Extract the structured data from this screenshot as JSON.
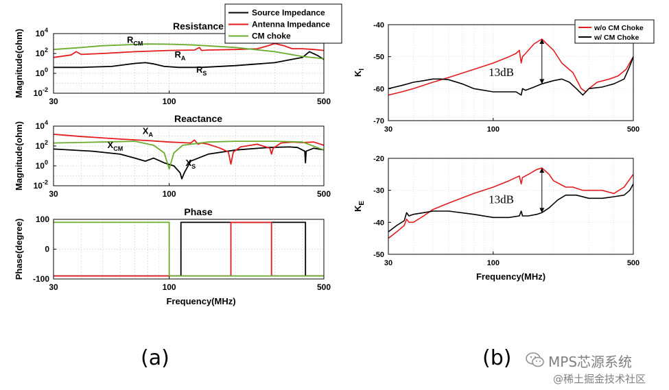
{
  "chart_data": [
    {
      "id": "resistance",
      "type": "line",
      "title": "Resistance",
      "ylabel": "Magnitude(ohm)",
      "xlabel": "",
      "xscale": "log",
      "yscale": "log",
      "xlim": [
        30,
        500
      ],
      "ylim": [
        0.01,
        10000
      ],
      "xticks": [
        30,
        100,
        500
      ],
      "yticks": [
        {
          "v": 0.01,
          "b": "10",
          "e": "-2"
        },
        {
          "v": 1,
          "b": "10",
          "e": "0"
        },
        {
          "v": 100,
          "b": "10",
          "e": "2"
        },
        {
          "v": 10000,
          "b": "10",
          "e": "4"
        }
      ],
      "legend": {
        "placement": "top-right",
        "entries": [
          "Source Impedance",
          "Antenna Impedance",
          "CM choke"
        ]
      },
      "series": [
        {
          "name": "Source Impedance",
          "color": "#000000",
          "x": [
            30,
            40,
            55,
            70,
            78,
            85,
            95,
            110,
            140,
            200,
            300,
            400,
            430,
            470,
            500
          ],
          "y": [
            4,
            4,
            5,
            10,
            12,
            9,
            5,
            4,
            4,
            6,
            12,
            40,
            150,
            60,
            25
          ]
        },
        {
          "name": "Antenna Impedance",
          "color": "#e41a1c",
          "x": [
            30,
            36,
            38,
            40,
            50,
            70,
            100,
            130,
            137,
            140,
            150,
            200,
            250,
            280,
            300,
            330,
            360,
            400,
            450,
            500
          ],
          "y": [
            40,
            70,
            150,
            80,
            100,
            150,
            200,
            220,
            400,
            200,
            220,
            250,
            300,
            600,
            1000,
            600,
            300,
            300,
            250,
            200
          ]
        },
        {
          "name": "CM choke",
          "color": "#6aab2c",
          "x": [
            30,
            40,
            50,
            70,
            80,
            100,
            130,
            200,
            300,
            400,
            500
          ],
          "y": [
            250,
            400,
            600,
            800,
            900,
            850,
            700,
            400,
            150,
            50,
            30
          ]
        }
      ],
      "annotations": [
        {
          "label": "R",
          "sub": "CM",
          "x": 70,
          "y": 1200
        },
        {
          "label": "R",
          "sub": "A",
          "x": 112,
          "y": 40
        },
        {
          "label": "R",
          "sub": "S",
          "x": 140,
          "y": 1.2
        }
      ]
    },
    {
      "id": "reactance",
      "type": "line",
      "title": "Reactance",
      "ylabel": "Magnitude(ohm)",
      "xlabel": "",
      "xscale": "log",
      "yscale": "log",
      "xlim": [
        30,
        500
      ],
      "ylim": [
        0.01,
        10000
      ],
      "xticks": [
        30,
        100,
        500
      ],
      "yticks": [
        {
          "v": 0.01,
          "b": "10",
          "e": "-2"
        },
        {
          "v": 1,
          "b": "10",
          "e": "0"
        },
        {
          "v": 100,
          "b": "10",
          "e": "2"
        },
        {
          "v": 10000,
          "b": "10",
          "e": "4"
        }
      ],
      "series": [
        {
          "name": "Source Impedance",
          "color": "#000000",
          "x": [
            30,
            45,
            60,
            70,
            78,
            85,
            95,
            105,
            112,
            114,
            117,
            125,
            150,
            200,
            280,
            350,
            380,
            410,
            413,
            416,
            450,
            500
          ],
          "y": [
            50,
            30,
            15,
            6,
            3,
            6,
            2,
            1,
            0.2,
            0.05,
            0.2,
            3,
            15,
            40,
            70,
            80,
            70,
            30,
            2,
            30,
            60,
            40
          ]
        },
        {
          "name": "Antenna Impedance",
          "color": "#e41a1c",
          "x": [
            30,
            40,
            60,
            80,
            100,
            125,
            130,
            135,
            140,
            150,
            170,
            185,
            190,
            195,
            210,
            250,
            285,
            290,
            295,
            320,
            360,
            400,
            450,
            500
          ],
          "y": [
            1500,
            900,
            500,
            350,
            250,
            200,
            400,
            150,
            200,
            150,
            60,
            25,
            1.5,
            25,
            80,
            150,
            60,
            15,
            60,
            200,
            250,
            220,
            250,
            120
          ]
        },
        {
          "name": "CM choke",
          "color": "#6aab2c",
          "x": [
            30,
            50,
            70,
            85,
            95,
            100,
            105,
            115,
            150,
            200,
            300,
            400,
            500
          ],
          "y": [
            200,
            250,
            300,
            120,
            20,
            0.5,
            20,
            120,
            250,
            300,
            300,
            250,
            40
          ]
        }
      ],
      "annotations": [
        {
          "label": "X",
          "sub": "A",
          "x": 80,
          "y": 1600
        },
        {
          "label": "X",
          "sub": "CM",
          "x": 57,
          "y": 60
        },
        {
          "label": "X",
          "sub": "S",
          "x": 125,
          "y": 1
        }
      ]
    },
    {
      "id": "phase",
      "type": "line",
      "title": "Phase",
      "ylabel": "Phase(degree)",
      "xlabel": "Frequency(MHz)",
      "xscale": "log",
      "yscale": "linear",
      "xlim": [
        30,
        500
      ],
      "ylim": [
        -100,
        100
      ],
      "xticks": [
        30,
        100,
        500
      ],
      "yticks": [
        {
          "v": -100,
          "t": "-100"
        },
        {
          "v": 0,
          "t": "0"
        },
        {
          "v": 100,
          "t": "100"
        }
      ],
      "series": [
        {
          "name": "Source Impedance",
          "color": "#000000",
          "x": [
            30,
            113,
            113,
            413,
            413,
            500
          ],
          "y": [
            -90,
            -90,
            90,
            90,
            -90,
            -90
          ]
        },
        {
          "name": "Antenna Impedance",
          "color": "#e41a1c",
          "x": [
            30,
            190,
            190,
            290,
            290,
            500
          ],
          "y": [
            -90,
            -90,
            90,
            90,
            -90,
            -90
          ]
        },
        {
          "name": "CM choke",
          "color": "#6aab2c",
          "x": [
            30,
            100,
            100,
            500
          ],
          "y": [
            90,
            90,
            -90,
            -90
          ]
        }
      ]
    },
    {
      "id": "ki",
      "type": "line",
      "title": "",
      "ylabel": "K",
      "ylabel_sub": "I",
      "xlabel": "",
      "xscale": "log",
      "yscale": "linear",
      "xlim": [
        30,
        500
      ],
      "ylim": [
        -70,
        -40
      ],
      "xticks": [
        30,
        100,
        500
      ],
      "yticks": [
        {
          "v": -70,
          "t": "-70"
        },
        {
          "v": -60,
          "t": "-60"
        },
        {
          "v": -50,
          "t": "-50"
        },
        {
          "v": -40,
          "t": "-40"
        }
      ],
      "legend": {
        "placement": "top-right",
        "entries": [
          "w/o CM Choke",
          "w/ CM Choke"
        ]
      },
      "series": [
        {
          "name": "w/o CM Choke",
          "color": "#e41a1c",
          "x": [
            30,
            35,
            40,
            50,
            60,
            80,
            100,
            120,
            130,
            135,
            138,
            140,
            145,
            160,
            175,
            185,
            200,
            220,
            250,
            275,
            290,
            300,
            330,
            380,
            420,
            460,
            500
          ],
          "y": [
            -62,
            -61,
            -60,
            -58,
            -56.5,
            -54,
            -52,
            -50,
            -49,
            -48,
            -52,
            -50,
            -49,
            -46,
            -44.5,
            -46,
            -48,
            -52,
            -55,
            -60,
            -61,
            -60,
            -58,
            -57,
            -56,
            -54,
            -50
          ]
        },
        {
          "name": "w/ CM Choke",
          "color": "#000000",
          "x": [
            30,
            35,
            40,
            45,
            50,
            55,
            60,
            70,
            80,
            100,
            130,
            138,
            140,
            145,
            160,
            175,
            200,
            220,
            240,
            260,
            280,
            290,
            300,
            350,
            400,
            450,
            480,
            500
          ],
          "y": [
            -60,
            -59,
            -58,
            -57.5,
            -57,
            -57,
            -57.2,
            -58.5,
            -60,
            -61,
            -61,
            -62,
            -60,
            -60.5,
            -59.5,
            -58.5,
            -57.5,
            -57,
            -58,
            -60,
            -62,
            -61,
            -60,
            -59.5,
            -58.5,
            -57,
            -53,
            -50
          ]
        }
      ],
      "annotations": [
        {
          "label": "13dB",
          "x": 130,
          "y": -55
        }
      ]
    },
    {
      "id": "ke",
      "type": "line",
      "title": "",
      "ylabel": "K",
      "ylabel_sub": "E",
      "xlabel": "Frequency(MHz)",
      "xscale": "log",
      "yscale": "linear",
      "xlim": [
        30,
        500
      ],
      "ylim": [
        -50,
        -20
      ],
      "xticks": [
        30,
        100,
        500
      ],
      "yticks": [
        {
          "v": -50,
          "t": "-50"
        },
        {
          "v": -40,
          "t": "-40"
        },
        {
          "v": -30,
          "t": "-30"
        },
        {
          "v": -20,
          "t": "-20"
        }
      ],
      "series": [
        {
          "name": "w/o CM Choke",
          "color": "#e41a1c",
          "x": [
            30,
            33,
            36,
            37,
            38,
            40,
            45,
            50,
            60,
            80,
            100,
            120,
            135,
            138,
            140,
            150,
            165,
            175,
            190,
            200,
            230,
            250,
            280,
            300,
            350,
            400,
            450,
            500
          ],
          "y": [
            -45,
            -43,
            -41,
            -39,
            -40,
            -40,
            -38,
            -36,
            -34,
            -31,
            -29,
            -27,
            -25.5,
            -28,
            -26,
            -25,
            -23.5,
            -23,
            -25,
            -27,
            -29,
            -29,
            -30,
            -30,
            -30,
            -31,
            -29,
            -25
          ]
        },
        {
          "name": "w/ CM Choke",
          "color": "#000000",
          "x": [
            30,
            33,
            36,
            37,
            38,
            40,
            45,
            50,
            60,
            80,
            100,
            120,
            135,
            138,
            140,
            150,
            165,
            175,
            190,
            210,
            230,
            260,
            300,
            350,
            400,
            450,
            480,
            500
          ],
          "y": [
            -43,
            -41,
            -39.5,
            -37,
            -38,
            -37.5,
            -37,
            -36.5,
            -36.5,
            -37.5,
            -38.5,
            -38.5,
            -38,
            -36.5,
            -38,
            -38,
            -37.5,
            -37,
            -35.5,
            -33,
            -31.5,
            -31.5,
            -32.5,
            -32.5,
            -32,
            -31.5,
            -30,
            -28
          ]
        }
      ],
      "annotations": [
        {
          "label": "13dB",
          "x": 130,
          "y": -33
        }
      ]
    }
  ],
  "captions": {
    "a": "(a)",
    "b": "(b)"
  },
  "watermark": {
    "name": "MPS芯源系统",
    "sub": "@稀土掘金技术社区"
  },
  "colors": {
    "source": "#000000",
    "antenna": "#e41a1c",
    "choke": "#6aab2c",
    "grid": "#d9d9d9",
    "watermark": "#808080"
  }
}
